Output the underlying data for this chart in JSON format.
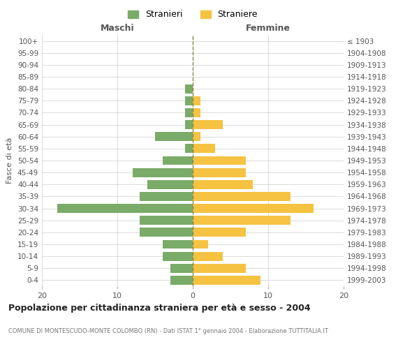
{
  "age_groups": [
    "0-4",
    "5-9",
    "10-14",
    "15-19",
    "20-24",
    "25-29",
    "30-34",
    "35-39",
    "40-44",
    "45-49",
    "50-54",
    "55-59",
    "60-64",
    "65-69",
    "70-74",
    "75-79",
    "80-84",
    "85-89",
    "90-94",
    "95-99",
    "100+"
  ],
  "birth_years": [
    "1999-2003",
    "1994-1998",
    "1989-1993",
    "1984-1988",
    "1979-1983",
    "1974-1978",
    "1969-1973",
    "1964-1968",
    "1959-1963",
    "1954-1958",
    "1949-1953",
    "1944-1948",
    "1939-1943",
    "1934-1938",
    "1929-1933",
    "1924-1928",
    "1919-1923",
    "1914-1918",
    "1909-1913",
    "1904-1908",
    "≤ 1903"
  ],
  "males": [
    3,
    3,
    4,
    4,
    7,
    7,
    18,
    7,
    6,
    8,
    4,
    1,
    5,
    1,
    1,
    1,
    1,
    0,
    0,
    0,
    0
  ],
  "females": [
    9,
    7,
    4,
    2,
    7,
    13,
    16,
    13,
    8,
    7,
    7,
    3,
    1,
    4,
    1,
    1,
    0,
    0,
    0,
    0,
    0
  ],
  "male_color": "#7aab68",
  "female_color": "#f5c242",
  "dashed_line_color": "#888844",
  "background_color": "#ffffff",
  "grid_color": "#cccccc",
  "title": "Popolazione per cittadinanza straniera per età e sesso - 2004",
  "subtitle": "COMUNE DI MONTESCUDO-MONTE COLOMBO (RN) - Dati ISTAT 1° gennaio 2004 - Elaborazione TUTTITALIA.IT",
  "xlabel_left": "Maschi",
  "xlabel_right": "Femmine",
  "ylabel_left": "Fasce di età",
  "legend_male": "Stranieri",
  "legend_female": "Straniere",
  "xlim": 20
}
